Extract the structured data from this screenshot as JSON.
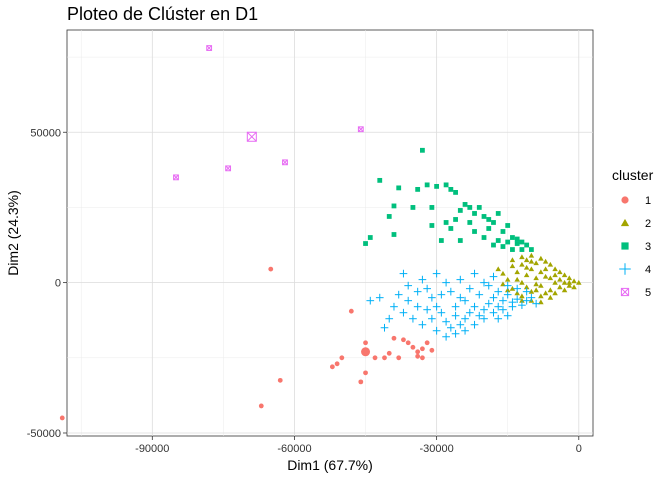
{
  "chart_data": {
    "type": "scatter",
    "title": "Ploteo de Clúster en D1",
    "xlabel": "Dim1 (67.7%)",
    "ylabel": "Dim2 (24.3%)",
    "xlim": [
      -108000,
      3000
    ],
    "ylim": [
      -51000,
      84000
    ],
    "x_ticks": [
      -90000,
      -60000,
      -30000,
      0
    ],
    "x_tick_labels": [
      "-90000",
      "-60000",
      "-30000",
      "0"
    ],
    "y_ticks": [
      -50000,
      0,
      50000
    ],
    "y_tick_labels": [
      "-50000",
      "0",
      "50000"
    ],
    "grid": true,
    "legend": {
      "title": "cluster",
      "position": "right"
    },
    "series": [
      {
        "name": "1",
        "color": "#F8766D",
        "shape": "circle",
        "centroid": [
          -45000,
          -23000
        ],
        "points": [
          [
            -65000,
            4500
          ],
          [
            -48000,
            -9500
          ],
          [
            -45000,
            -20000
          ],
          [
            -45000,
            -30000
          ],
          [
            -46000,
            -33000
          ],
          [
            -50000,
            -25000
          ],
          [
            -51000,
            -27000
          ],
          [
            -52000,
            -28000
          ],
          [
            -43000,
            -25000
          ],
          [
            -41000,
            -25000
          ],
          [
            -40000,
            -23500
          ],
          [
            -38000,
            -25000
          ],
          [
            -39000,
            -18500
          ],
          [
            -37000,
            -19000
          ],
          [
            -36000,
            -20000
          ],
          [
            -35000,
            -21500
          ],
          [
            -34000,
            -24500
          ],
          [
            -33000,
            -22000
          ],
          [
            -32000,
            -20000
          ],
          [
            -31000,
            -22500
          ],
          [
            -33000,
            -25000
          ],
          [
            -34000,
            -23000
          ],
          [
            -63000,
            -32500
          ],
          [
            -67000,
            -41000
          ],
          [
            -109000,
            -45000
          ]
        ]
      },
      {
        "name": "2",
        "color": "#A3A500",
        "shape": "triangle",
        "points": [
          [
            -17000,
            4500
          ],
          [
            -16000,
            3000
          ],
          [
            -15000,
            1000
          ],
          [
            -14000,
            5500
          ],
          [
            -14000,
            -2000
          ],
          [
            -13000,
            3500
          ],
          [
            -13000,
            -3500
          ],
          [
            -12000,
            6000
          ],
          [
            -12000,
            0
          ],
          [
            -12000,
            -4500
          ],
          [
            -11000,
            7500
          ],
          [
            -11000,
            2500
          ],
          [
            -11000,
            -1500
          ],
          [
            -10000,
            4500
          ],
          [
            -10000,
            -3000
          ],
          [
            -10000,
            9000
          ],
          [
            -9000,
            6500
          ],
          [
            -9000,
            1500
          ],
          [
            -9000,
            -2500
          ],
          [
            -8000,
            8000
          ],
          [
            -8000,
            3500
          ],
          [
            -8000,
            -1000
          ],
          [
            -8000,
            -4500
          ],
          [
            -7000,
            7000
          ],
          [
            -7000,
            2000
          ],
          [
            -7000,
            -3500
          ],
          [
            -6000,
            6000
          ],
          [
            -6000,
            1500
          ],
          [
            -6000,
            -2500
          ],
          [
            -5000,
            4500
          ],
          [
            -5000,
            0
          ],
          [
            -5000,
            -3500
          ],
          [
            -4000,
            3500
          ],
          [
            -4000,
            -1500
          ],
          [
            -3000,
            2500
          ],
          [
            -3000,
            -2500
          ],
          [
            -2000,
            1500
          ],
          [
            -2000,
            -1000
          ],
          [
            -1000,
            500
          ],
          [
            0,
            0
          ],
          [
            -1000,
            -1500
          ],
          [
            -3000,
            0
          ],
          [
            -5000,
            2500
          ],
          [
            -7000,
            4500
          ],
          [
            -9000,
            -500
          ],
          [
            -11000,
            5000
          ],
          [
            -13000,
            1000
          ],
          [
            -15000,
            -2500
          ],
          [
            -16000,
            -500
          ],
          [
            -12000,
            -6000
          ],
          [
            -10000,
            -6000
          ],
          [
            -8000,
            -6500
          ],
          [
            -6000,
            -5000
          ],
          [
            -14000,
            7500
          ],
          [
            -12000,
            8500
          ],
          [
            -10000,
            7000
          ],
          [
            -4000,
            1000
          ],
          [
            -2000,
            0
          ]
        ]
      },
      {
        "name": "3",
        "color": "#00BF7D",
        "shape": "square",
        "points": [
          [
            -33000,
            44000
          ],
          [
            -42000,
            34000
          ],
          [
            -38000,
            31500
          ],
          [
            -34000,
            31000
          ],
          [
            -32000,
            32500
          ],
          [
            -30000,
            32000
          ],
          [
            -28000,
            32500
          ],
          [
            -27000,
            31000
          ],
          [
            -26000,
            30000
          ],
          [
            -39000,
            25500
          ],
          [
            -35000,
            25000
          ],
          [
            -31000,
            25000
          ],
          [
            -40000,
            22000
          ],
          [
            -44000,
            15000
          ],
          [
            -45000,
            13000
          ],
          [
            -39000,
            16000
          ],
          [
            -31000,
            19000
          ],
          [
            -28000,
            20000
          ],
          [
            -26000,
            21000
          ],
          [
            -25000,
            24000
          ],
          [
            -24000,
            26000
          ],
          [
            -23000,
            25000
          ],
          [
            -22000,
            23000
          ],
          [
            -21000,
            25000
          ],
          [
            -20000,
            22000
          ],
          [
            -19000,
            18000
          ],
          [
            -18000,
            20000
          ],
          [
            -17000,
            23000
          ],
          [
            -16000,
            17000
          ],
          [
            -15000,
            19000
          ],
          [
            -14000,
            15000
          ],
          [
            -13000,
            13000
          ],
          [
            -12000,
            11000
          ],
          [
            -14000,
            11000
          ],
          [
            -16000,
            12000
          ],
          [
            -20000,
            15000
          ],
          [
            -22000,
            17000
          ],
          [
            -25000,
            14000
          ],
          [
            -15000,
            13500
          ],
          [
            -13000,
            14500
          ],
          [
            -12000,
            13500
          ],
          [
            -11000,
            12500
          ],
          [
            -10000,
            11000
          ],
          [
            -17000,
            14000
          ],
          [
            -18000,
            12500
          ],
          [
            -19000,
            21000
          ],
          [
            -23000,
            20000
          ],
          [
            -27000,
            18000
          ],
          [
            -29000,
            14000
          ]
        ]
      },
      {
        "name": "4",
        "color": "#00B0F6",
        "shape": "plus",
        "points": [
          [
            -37000,
            3000
          ],
          [
            -36000,
            -1000
          ],
          [
            -38000,
            -4000
          ],
          [
            -39000,
            -8000
          ],
          [
            -40000,
            -12000
          ],
          [
            -41000,
            -15000
          ],
          [
            -42000,
            -5000
          ],
          [
            -44000,
            -6000
          ],
          [
            -33000,
            1000
          ],
          [
            -32000,
            -2000
          ],
          [
            -31000,
            -5000
          ],
          [
            -30000,
            -8000
          ],
          [
            -29000,
            -10000
          ],
          [
            -28000,
            -13000
          ],
          [
            -27000,
            -15000
          ],
          [
            -26000,
            -17000
          ],
          [
            -25000,
            -14000
          ],
          [
            -24000,
            -12000
          ],
          [
            -23000,
            -10000
          ],
          [
            -22000,
            -8000
          ],
          [
            -21000,
            -11000
          ],
          [
            -20000,
            -9000
          ],
          [
            -19000,
            -7000
          ],
          [
            -18000,
            -5000
          ],
          [
            -17000,
            -8000
          ],
          [
            -16000,
            -6000
          ],
          [
            -15000,
            -4000
          ],
          [
            -14000,
            -6500
          ],
          [
            -13000,
            -5500
          ],
          [
            -12000,
            -7500
          ],
          [
            -11000,
            -6000
          ],
          [
            -10000,
            -5000
          ],
          [
            -9000,
            -7000
          ],
          [
            -27000,
            -3000
          ],
          [
            -25000,
            -5000
          ],
          [
            -23000,
            -2000
          ],
          [
            -21000,
            -4000
          ],
          [
            -19000,
            -1000
          ],
          [
            -17000,
            -3000
          ],
          [
            -29000,
            -4000
          ],
          [
            -31000,
            -12000
          ],
          [
            -33000,
            -14000
          ],
          [
            -35000,
            -12000
          ],
          [
            -37000,
            -10000
          ],
          [
            -34000,
            -8000
          ],
          [
            -36000,
            -6000
          ],
          [
            -22000,
            -14000
          ],
          [
            -20000,
            -12000
          ],
          [
            -18000,
            -10000
          ],
          [
            -16000,
            -9000
          ],
          [
            -14000,
            -8000
          ],
          [
            -26000,
            -8000
          ],
          [
            -24000,
            -6000
          ],
          [
            -30000,
            -16000
          ],
          [
            -28000,
            -18000
          ],
          [
            -26000,
            -11000
          ],
          [
            -15000,
            -1000
          ],
          [
            -13000,
            -2000
          ],
          [
            -11000,
            -3000
          ],
          [
            -18000,
            2000
          ],
          [
            -20000,
            0
          ],
          [
            -22000,
            3000
          ],
          [
            -25000,
            1000
          ],
          [
            -28000,
            0
          ],
          [
            -30000,
            3000
          ],
          [
            -34000,
            -3000
          ],
          [
            -32000,
            -9000
          ],
          [
            -24000,
            -16000
          ],
          [
            -17000,
            -12000
          ],
          [
            -15000,
            -11000
          ]
        ]
      },
      {
        "name": "5",
        "color": "#E76BF3",
        "shape": "square-x",
        "centroid": [
          -69000,
          48500
        ],
        "points": [
          [
            -78000,
            78000
          ],
          [
            -46000,
            51000
          ],
          [
            -62000,
            40000
          ],
          [
            -74000,
            38000
          ],
          [
            -85000,
            35000
          ]
        ]
      }
    ]
  }
}
